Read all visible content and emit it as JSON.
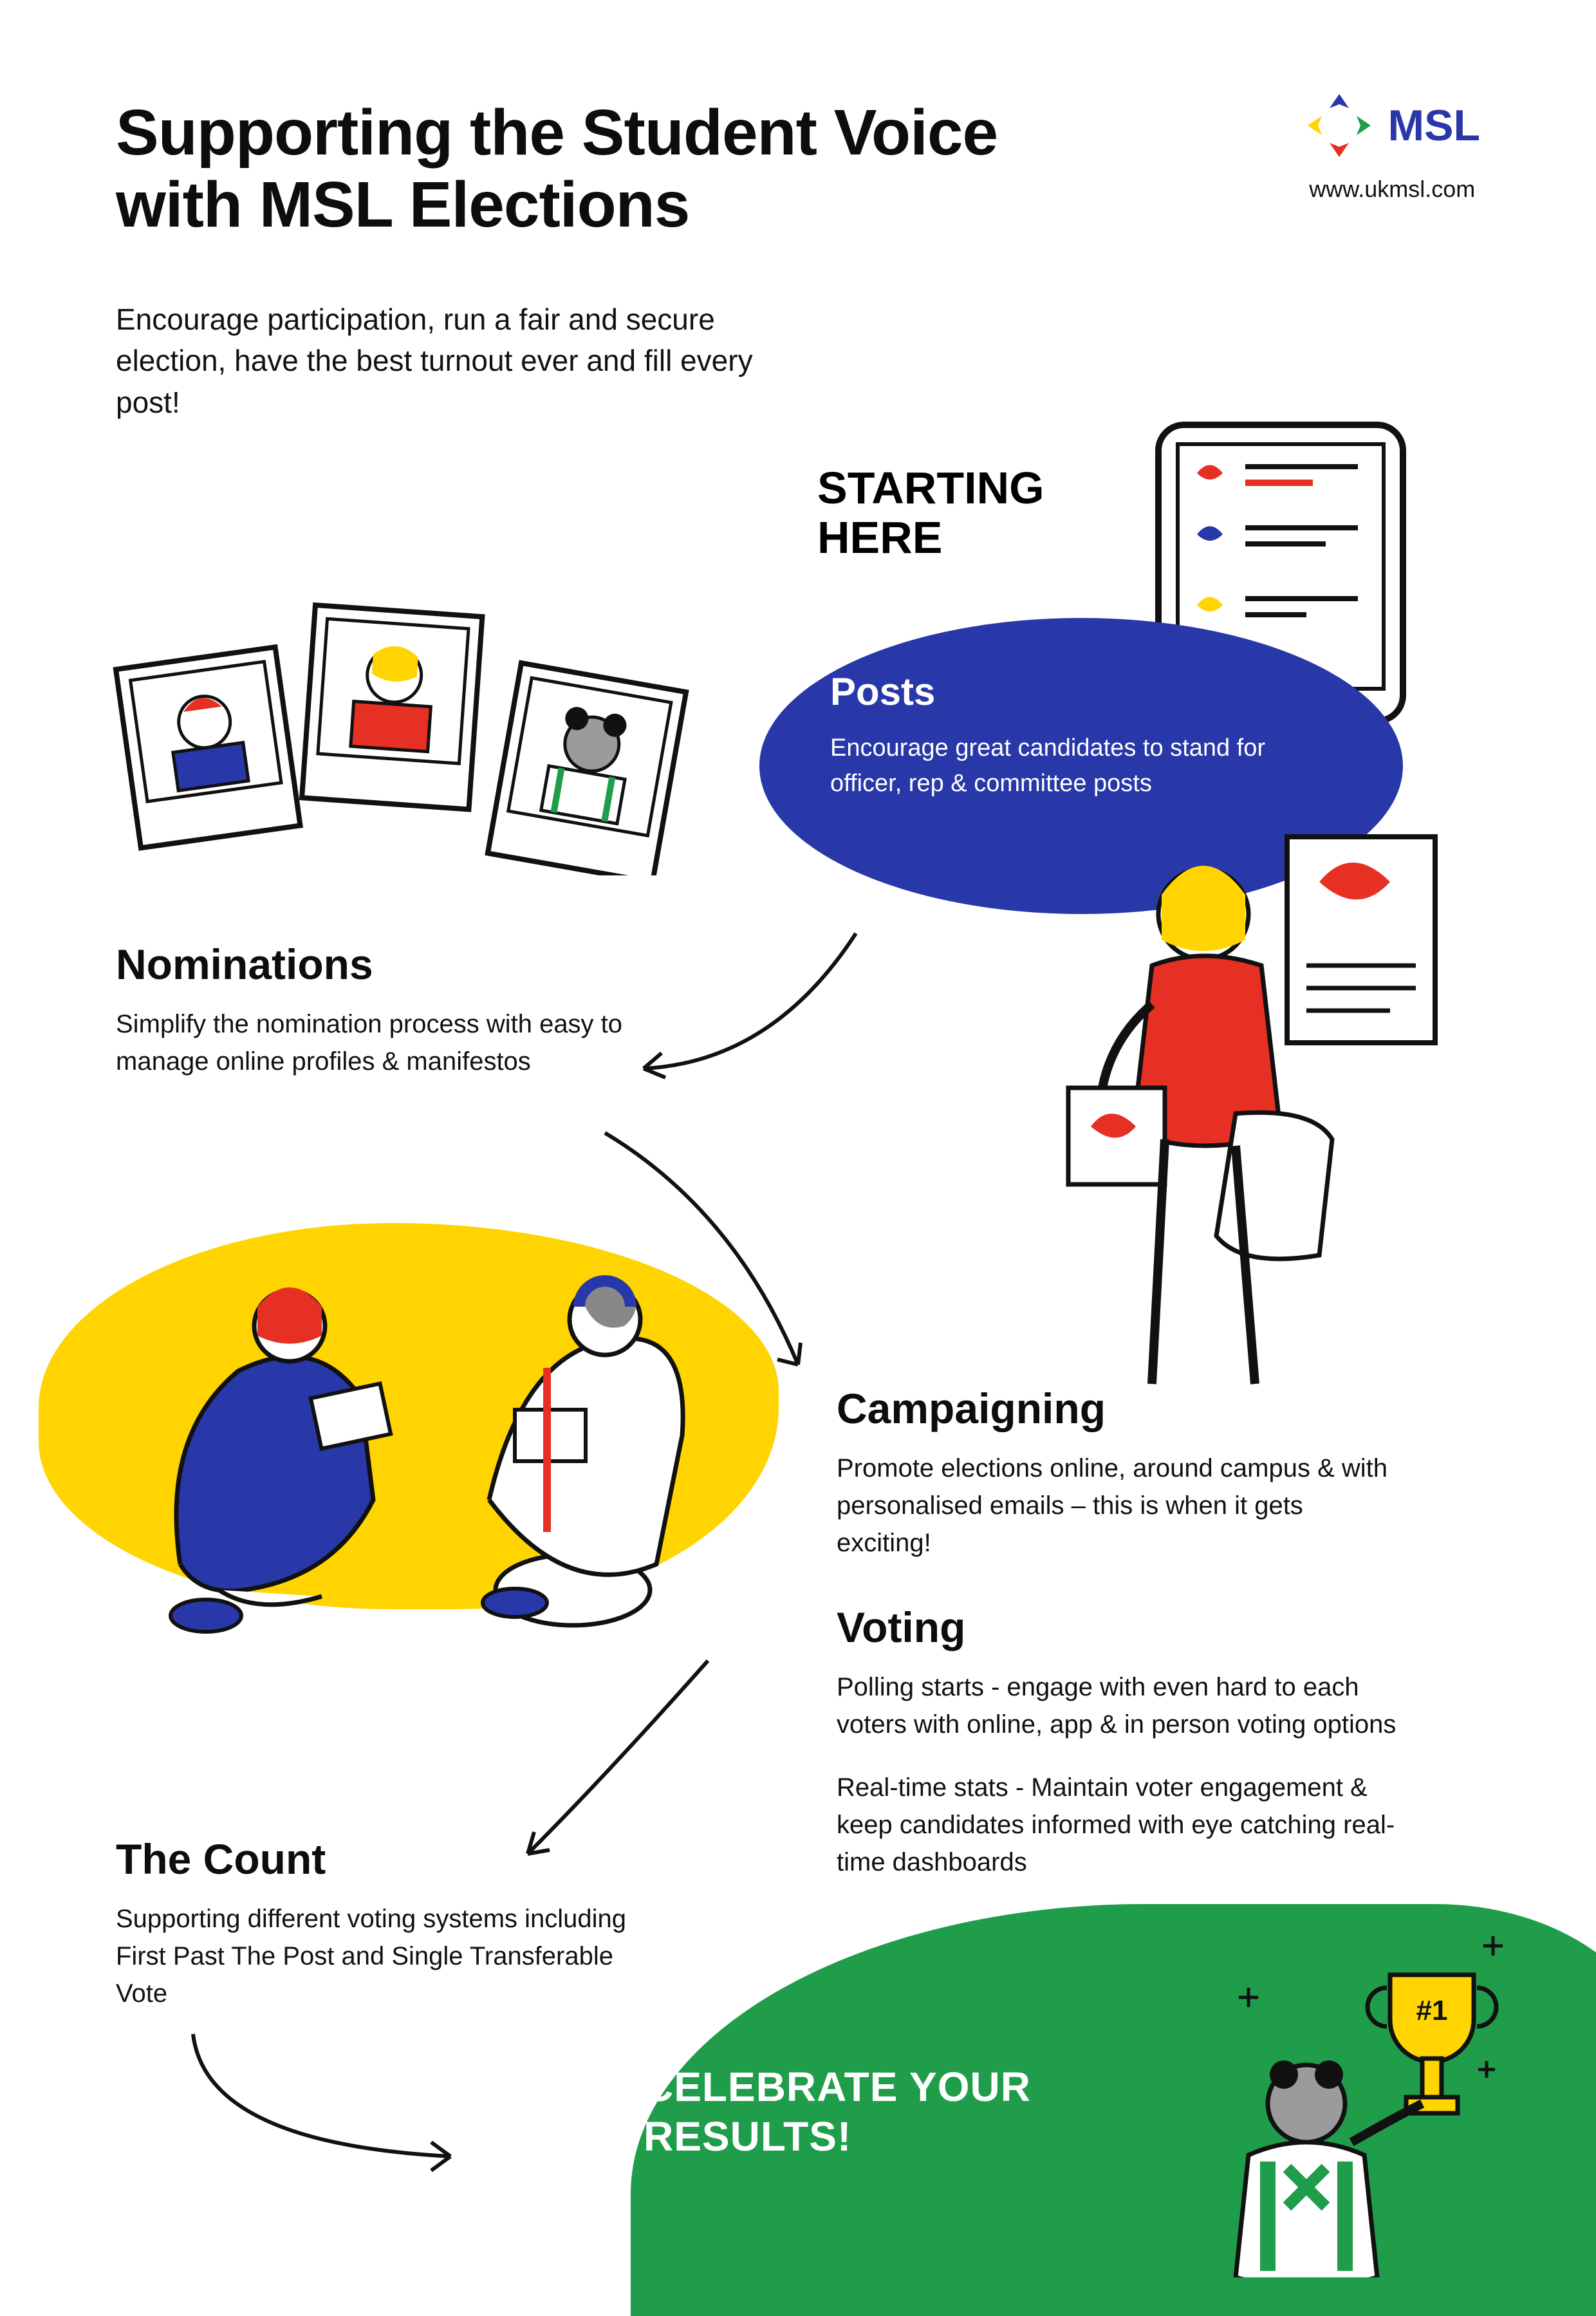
{
  "colors": {
    "navy": "#2838a8",
    "yellow": "#ffd400",
    "green": "#1f9d4a",
    "red": "#e63024",
    "text": "#0d0d0d",
    "white": "#ffffff"
  },
  "logo": {
    "brand": "MSL",
    "url": "www.ukmsl.com"
  },
  "headline": "Supporting the Student Voice with MSL Elections",
  "intro": "Encourage participation, run a fair and secure election, have the best turnout ever and fill every post!",
  "starting_here": "STARTING HERE",
  "posts": {
    "title": "Posts",
    "body": "Encourage great candidates to stand for officer, rep & committee posts"
  },
  "nominations": {
    "title": "Nominations",
    "body": "Simplify the nomination process with easy to manage online profiles & manifestos"
  },
  "campaigning": {
    "title": "Campaigning",
    "body": "Promote elections online, around campus & with personalised emails – this is when it gets exciting!"
  },
  "voting": {
    "title": "Voting",
    "body1": "Polling starts - engage with even hard to each voters with online, app & in person voting options",
    "body2": "Real-time stats - Maintain voter engagement & keep candidates informed with eye catching real-time dashboards"
  },
  "count": {
    "title": "The Count",
    "body": "Supporting different voting systems including First Past The Post and Single Transferable Vote"
  },
  "celebrate": "CELEBRATE YOUR RESULTS!",
  "trophy_label": "#1"
}
